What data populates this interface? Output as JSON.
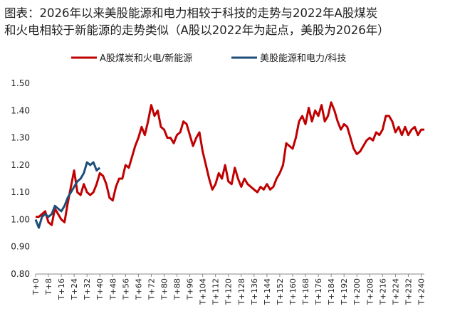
{
  "chart_data": {
    "type": "line",
    "title_lines": [
      "图表：2026年以来美股能源和电力相较于科技的走势与2022年A股煤炭",
      "和火电相较于新能源的走势类似（A股以2022年为起点，美股为2026年）"
    ],
    "x": [
      0,
      2,
      4,
      6,
      8,
      10,
      12,
      14,
      16,
      18,
      20,
      22,
      24,
      26,
      28,
      30,
      32,
      34,
      36,
      38,
      40,
      42,
      44,
      46,
      48,
      50,
      52,
      54,
      56,
      58,
      60,
      62,
      64,
      66,
      68,
      70,
      72,
      74,
      76,
      78,
      80,
      82,
      84,
      86,
      88,
      90,
      92,
      94,
      96,
      98,
      100,
      102,
      104,
      106,
      108,
      110,
      112,
      114,
      116,
      118,
      120,
      122,
      124,
      126,
      128,
      130,
      132,
      134,
      136,
      138,
      140,
      142,
      144,
      146,
      148,
      150,
      152,
      154,
      156,
      158,
      160,
      162,
      164,
      166,
      168,
      170,
      172,
      174,
      176,
      178,
      180,
      182,
      184,
      186,
      188,
      190,
      192,
      194,
      196,
      198,
      200,
      202,
      204,
      206,
      208,
      210,
      212,
      214,
      216,
      218,
      220,
      222,
      224,
      226,
      228,
      230,
      232,
      234,
      236,
      238,
      240,
      242
    ],
    "series": [
      {
        "name": "A股煤炭和火电/新能源",
        "color": "#c00000",
        "values": [
          1.01,
          1.01,
          1.02,
          1.03,
          0.99,
          0.98,
          1.04,
          1.02,
          1.0,
          0.99,
          1.06,
          1.12,
          1.18,
          1.1,
          1.09,
          1.13,
          1.1,
          1.09,
          1.1,
          1.13,
          1.17,
          1.16,
          1.13,
          1.08,
          1.07,
          1.12,
          1.15,
          1.15,
          1.2,
          1.19,
          1.23,
          1.27,
          1.3,
          1.34,
          1.31,
          1.36,
          1.42,
          1.38,
          1.4,
          1.34,
          1.33,
          1.3,
          1.3,
          1.28,
          1.31,
          1.32,
          1.36,
          1.35,
          1.31,
          1.27,
          1.3,
          1.32,
          1.25,
          1.2,
          1.15,
          1.11,
          1.13,
          1.17,
          1.15,
          1.2,
          1.14,
          1.13,
          1.19,
          1.15,
          1.12,
          1.15,
          1.13,
          1.12,
          1.11,
          1.1,
          1.12,
          1.11,
          1.13,
          1.11,
          1.12,
          1.15,
          1.17,
          1.2,
          1.28,
          1.27,
          1.26,
          1.3,
          1.36,
          1.38,
          1.35,
          1.41,
          1.36,
          1.4,
          1.38,
          1.42,
          1.36,
          1.38,
          1.43,
          1.4,
          1.36,
          1.33,
          1.35,
          1.34,
          1.3,
          1.26,
          1.24,
          1.25,
          1.27,
          1.29,
          1.3,
          1.29,
          1.32,
          1.31,
          1.33,
          1.38,
          1.38,
          1.36,
          1.32,
          1.34,
          1.31,
          1.34,
          1.31,
          1.33,
          1.34,
          1.31,
          1.33,
          1.33
        ]
      },
      {
        "name": "美股能源和电力/科技",
        "color": "#1f4e79",
        "values": [
          1.0,
          0.97,
          1.01,
          1.02,
          1.01,
          1.02,
          1.05,
          1.04,
          1.03,
          1.05,
          1.08,
          1.1,
          1.12,
          1.14,
          1.15,
          1.17,
          1.21,
          1.2,
          1.21,
          1.18,
          1.19,
          null,
          null,
          null,
          null,
          null,
          null,
          null,
          null,
          null,
          null,
          null,
          null,
          null,
          null,
          null,
          null,
          null,
          null,
          null,
          null,
          null,
          null,
          null,
          null,
          null,
          null,
          null,
          null,
          null,
          null,
          null,
          null,
          null,
          null,
          null,
          null,
          null,
          null,
          null,
          null,
          null,
          null,
          null,
          null,
          null,
          null,
          null,
          null,
          null,
          null,
          null,
          null,
          null,
          null,
          null,
          null,
          null,
          null,
          null,
          null,
          null,
          null,
          null,
          null,
          null,
          null,
          null,
          null,
          null,
          null,
          null,
          null,
          null,
          null,
          null,
          null,
          null,
          null,
          null,
          null,
          null,
          null,
          null,
          null,
          null,
          null,
          null,
          null,
          null,
          null,
          null,
          null,
          null,
          null,
          null,
          null,
          null,
          null,
          null,
          null,
          null
        ]
      }
    ],
    "xlim": [
      0,
      242
    ],
    "xticks": [
      {
        "value": 0,
        "label": "T+0"
      },
      {
        "value": 8,
        "label": "T+8"
      },
      {
        "value": 16,
        "label": "T+16"
      },
      {
        "value": 24,
        "label": "T+24"
      },
      {
        "value": 32,
        "label": "T+32"
      },
      {
        "value": 40,
        "label": "T+40"
      },
      {
        "value": 48,
        "label": "T+48"
      },
      {
        "value": 56,
        "label": "T+56"
      },
      {
        "value": 64,
        "label": "T+64"
      },
      {
        "value": 72,
        "label": "T+72"
      },
      {
        "value": 80,
        "label": "T+80"
      },
      {
        "value": 88,
        "label": "T+88"
      },
      {
        "value": 96,
        "label": "T+96"
      },
      {
        "value": 104,
        "label": "T+104"
      },
      {
        "value": 112,
        "label": "T+112"
      },
      {
        "value": 120,
        "label": "T+120"
      },
      {
        "value": 128,
        "label": "T+128"
      },
      {
        "value": 136,
        "label": "T+136"
      },
      {
        "value": 144,
        "label": "T+144"
      },
      {
        "value": 152,
        "label": "T+152"
      },
      {
        "value": 160,
        "label": "T+160"
      },
      {
        "value": 168,
        "label": "T+168"
      },
      {
        "value": 176,
        "label": "T+176"
      },
      {
        "value": 184,
        "label": "T+184"
      },
      {
        "value": 192,
        "label": "T+192"
      },
      {
        "value": 200,
        "label": "T+200"
      },
      {
        "value": 208,
        "label": "T+208"
      },
      {
        "value": 216,
        "label": "T+216"
      },
      {
        "value": 224,
        "label": "T+224"
      },
      {
        "value": 232,
        "label": "T+232"
      },
      {
        "value": 240,
        "label": "T+240"
      }
    ],
    "ylim": [
      0.8,
      1.5
    ],
    "yticks": [
      {
        "value": 0.8,
        "label": "0.80"
      },
      {
        "value": 0.9,
        "label": "0.90"
      },
      {
        "value": 1.0,
        "label": "1.00"
      },
      {
        "value": 1.1,
        "label": "1.10"
      },
      {
        "value": 1.2,
        "label": "1.20"
      },
      {
        "value": 1.3,
        "label": "1.30"
      },
      {
        "value": 1.4,
        "label": "1.40"
      },
      {
        "value": 1.5,
        "label": "1.50"
      }
    ],
    "grid": false
  }
}
